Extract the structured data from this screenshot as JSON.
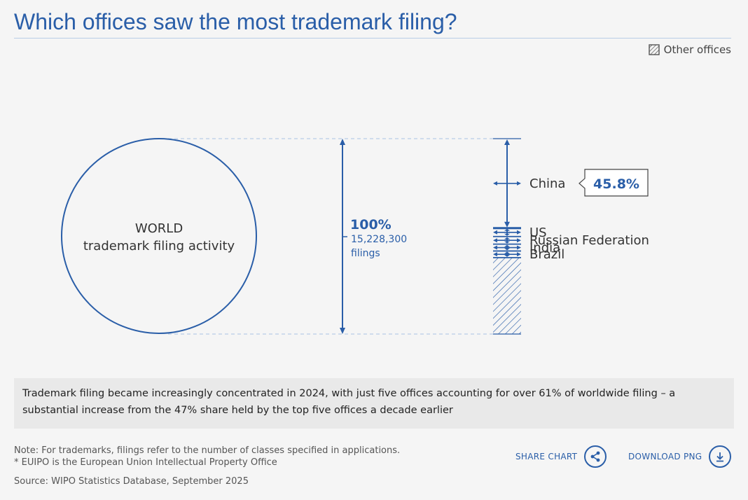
{
  "title": "Which offices saw the most trademark filing?",
  "legend": {
    "other_label": "Other offices"
  },
  "chart_data": {
    "type": "proportion-bar",
    "circle_label_line1": "WORLD",
    "circle_label_line2": "trademark filing activity",
    "total": {
      "percent_label": "100%",
      "value_label": "15,228,300",
      "unit_label": "filings",
      "value": 15228300
    },
    "offices": [
      {
        "name": "China",
        "share": 45.8,
        "callout": "45.8%"
      },
      {
        "name": "US",
        "share": 4.3
      },
      {
        "name": "Russian Federation",
        "share": 3.9
      },
      {
        "name": "India",
        "share": 3.5
      },
      {
        "name": "Brazil",
        "share": 3.4
      }
    ],
    "other_share": 39.1,
    "colors": {
      "primary": "#2a5ea8",
      "dashed": "#b9cde6"
    }
  },
  "summary": "Trademark filing became increasingly concentrated in 2024, with just five offices accounting for over 61% of worldwide filing – a substantial increase from the 47% share held by the top five offices a decade earlier",
  "note_line1": "Note: For trademarks, filings refer to the number of classes specified in applications.",
  "note_line2": "* EUIPO is the European Union Intellectual Property Office",
  "source": "Source: WIPO Statistics Database, September 2025",
  "actions": {
    "share_label": "SHARE CHART",
    "download_label": "DOWNLOAD PNG"
  }
}
